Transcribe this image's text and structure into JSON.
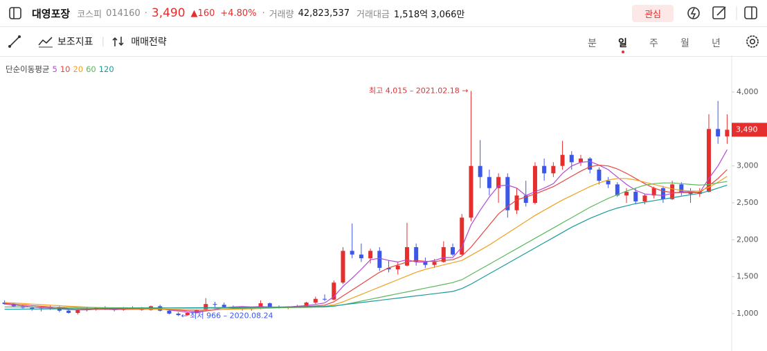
{
  "header": {
    "name": "대영포장",
    "market": "코스피",
    "code": "014160",
    "separator": "·",
    "price": "3,490",
    "change": "▲160",
    "change_rate": "+4.80%",
    "volume_label": "거래량",
    "volume": "42,823,537",
    "amount_label": "거래대금",
    "amount": "1,518억 3,066만",
    "watch_button": "관심"
  },
  "toolbar": {
    "indicator": "보조지표",
    "strategy": "매매전략",
    "tabs": [
      "분",
      "일",
      "주",
      "월",
      "년"
    ],
    "active_tab": 1
  },
  "chart_data": {
    "type": "candlestick",
    "legend_title": "단순이동평균",
    "ylim": [
      494,
      4497
    ],
    "yticks": [
      {
        "value": 1000,
        "label": "1,000"
      },
      {
        "value": 1500,
        "label": "1,500"
      },
      {
        "value": 2000,
        "label": "2,000"
      },
      {
        "value": 2500,
        "label": "2,500"
      },
      {
        "value": 3000,
        "label": "3,000"
      },
      {
        "value": 4000,
        "label": "4,000"
      }
    ],
    "up_color": "#e52e2e",
    "down_color": "#3a57e8",
    "last_price": {
      "value": 3490,
      "label": "3,490"
    },
    "annotations": [
      {
        "text": "최고 4,015 – 2021.02.18 →",
        "value": 4015,
        "index": 51,
        "color": "#e52e2e",
        "side": "left"
      },
      {
        "text": "← 최저 966 – 2020.08.24",
        "value": 966,
        "index": 19,
        "color": "#3a57e8",
        "side": "right"
      }
    ],
    "candles": [
      [
        1150,
        1180,
        1120,
        1130
      ],
      [
        1130,
        1150,
        1090,
        1100
      ],
      [
        1100,
        1120,
        1070,
        1080
      ],
      [
        1080,
        1100,
        1040,
        1060
      ],
      [
        1060,
        1090,
        1030,
        1070
      ],
      [
        1070,
        1110,
        1050,
        1090
      ],
      [
        1090,
        1100,
        1020,
        1040
      ],
      [
        1040,
        1070,
        1000,
        1010
      ],
      [
        1010,
        1060,
        990,
        1050
      ],
      [
        1050,
        1080,
        1030,
        1060
      ],
      [
        1060,
        1090,
        1040,
        1080
      ],
      [
        1080,
        1100,
        1050,
        1060
      ],
      [
        1060,
        1080,
        1030,
        1050
      ],
      [
        1050,
        1090,
        1040,
        1080
      ],
      [
        1080,
        1100,
        1060,
        1070
      ],
      [
        1070,
        1090,
        1040,
        1050
      ],
      [
        1050,
        1110,
        1040,
        1100
      ],
      [
        1100,
        1120,
        1030,
        1040
      ],
      [
        1040,
        1060,
        990,
        1000
      ],
      [
        1000,
        1020,
        966,
        980
      ],
      [
        980,
        1020,
        970,
        1010
      ],
      [
        1010,
        1060,
        1000,
        1050
      ],
      [
        1050,
        1210,
        1040,
        1130
      ],
      [
        1130,
        1160,
        1090,
        1120
      ],
      [
        1120,
        1150,
        1080,
        1090
      ],
      [
        1090,
        1110,
        1060,
        1070
      ],
      [
        1070,
        1090,
        1040,
        1060
      ],
      [
        1060,
        1080,
        1040,
        1070
      ],
      [
        1070,
        1180,
        1060,
        1140
      ],
      [
        1140,
        1150,
        1080,
        1090
      ],
      [
        1090,
        1110,
        1070,
        1080
      ],
      [
        1080,
        1100,
        1060,
        1090
      ],
      [
        1090,
        1120,
        1080,
        1100
      ],
      [
        1100,
        1160,
        1090,
        1150
      ],
      [
        1150,
        1230,
        1130,
        1200
      ],
      [
        1200,
        1260,
        1170,
        1190
      ],
      [
        1190,
        1450,
        1180,
        1420
      ],
      [
        1420,
        1900,
        1400,
        1850
      ],
      [
        1850,
        2220,
        1750,
        1800
      ],
      [
        1800,
        1950,
        1700,
        1750
      ],
      [
        1750,
        1880,
        1680,
        1850
      ],
      [
        1850,
        1900,
        1580,
        1620
      ],
      [
        1620,
        1720,
        1560,
        1600
      ],
      [
        1600,
        1700,
        1530,
        1650
      ],
      [
        1650,
        2230,
        1640,
        1900
      ],
      [
        1900,
        1950,
        1650,
        1700
      ],
      [
        1700,
        1760,
        1620,
        1660
      ],
      [
        1660,
        1740,
        1620,
        1700
      ],
      [
        1700,
        1980,
        1690,
        1900
      ],
      [
        1900,
        1950,
        1780,
        1800
      ],
      [
        1800,
        2350,
        1790,
        2300
      ],
      [
        2300,
        4015,
        2250,
        3000
      ],
      [
        3000,
        3350,
        2700,
        2850
      ],
      [
        2850,
        2950,
        2600,
        2700
      ],
      [
        2700,
        2900,
        2500,
        2850
      ],
      [
        2850,
        2900,
        2300,
        2400
      ],
      [
        2400,
        2700,
        2350,
        2600
      ],
      [
        2600,
        2800,
        2450,
        2500
      ],
      [
        2500,
        3050,
        2480,
        3000
      ],
      [
        3000,
        3100,
        2800,
        2900
      ],
      [
        2900,
        3050,
        2850,
        3000
      ],
      [
        3000,
        3340,
        2950,
        3150
      ],
      [
        3150,
        3200,
        2950,
        3050
      ],
      [
        3050,
        3150,
        3000,
        3100
      ],
      [
        3100,
        3120,
        2900,
        2950
      ],
      [
        2950,
        2980,
        2750,
        2800
      ],
      [
        2800,
        2850,
        2700,
        2750
      ],
      [
        2750,
        2780,
        2580,
        2600
      ],
      [
        2600,
        2700,
        2500,
        2650
      ],
      [
        2650,
        2700,
        2480,
        2520
      ],
      [
        2520,
        2620,
        2480,
        2600
      ],
      [
        2600,
        2720,
        2560,
        2700
      ],
      [
        2700,
        2730,
        2500,
        2550
      ],
      [
        2550,
        2800,
        2540,
        2750
      ],
      [
        2750,
        2780,
        2600,
        2650
      ],
      [
        2650,
        2700,
        2500,
        2620
      ],
      [
        2620,
        2700,
        2580,
        2650
      ],
      [
        2650,
        3700,
        2640,
        3500
      ],
      [
        3500,
        3880,
        3300,
        3400
      ],
      [
        3400,
        3700,
        3300,
        3490
      ]
    ],
    "series": [
      {
        "name": "5",
        "color": "#b548d6",
        "values": [
          1130,
          1115,
          1105,
          1090,
          1080,
          1075,
          1065,
          1055,
          1050,
          1050,
          1060,
          1060,
          1060,
          1065,
          1065,
          1060,
          1070,
          1065,
          1050,
          1035,
          1020,
          1020,
          1035,
          1060,
          1080,
          1090,
          1095,
          1090,
          1095,
          1090,
          1085,
          1090,
          1100,
          1110,
          1125,
          1145,
          1230,
          1370,
          1480,
          1600,
          1730,
          1750,
          1720,
          1700,
          1730,
          1700,
          1700,
          1720,
          1760,
          1760,
          1900,
          2200,
          2400,
          2580,
          2730,
          2740,
          2700,
          2600,
          2650,
          2700,
          2760,
          2900,
          3000,
          3050,
          3060,
          3010,
          2950,
          2850,
          2750,
          2670,
          2620,
          2610,
          2600,
          2630,
          2650,
          2650,
          2640,
          2830,
          3000,
          3220
        ]
      },
      {
        "name": "10",
        "color": "#e8453c",
        "values": [
          1140,
          1130,
          1120,
          1110,
          1100,
          1090,
          1080,
          1070,
          1065,
          1060,
          1060,
          1058,
          1055,
          1058,
          1060,
          1060,
          1062,
          1060,
          1055,
          1048,
          1040,
          1035,
          1040,
          1050,
          1058,
          1065,
          1070,
          1075,
          1080,
          1085,
          1088,
          1090,
          1092,
          1098,
          1105,
          1115,
          1160,
          1240,
          1320,
          1400,
          1480,
          1560,
          1620,
          1660,
          1700,
          1720,
          1710,
          1705,
          1720,
          1730,
          1780,
          1900,
          2050,
          2200,
          2350,
          2450,
          2540,
          2580,
          2620,
          2670,
          2720,
          2790,
          2860,
          2930,
          2990,
          3010,
          3000,
          2960,
          2900,
          2830,
          2760,
          2700,
          2660,
          2640,
          2640,
          2640,
          2640,
          2730,
          2830,
          2950
        ]
      },
      {
        "name": "20",
        "color": "#f0a020",
        "values": [
          1150,
          1145,
          1138,
          1130,
          1122,
          1115,
          1108,
          1100,
          1094,
          1088,
          1083,
          1078,
          1074,
          1070,
          1068,
          1066,
          1064,
          1062,
          1060,
          1057,
          1054,
          1052,
          1052,
          1054,
          1057,
          1060,
          1063,
          1066,
          1070,
          1074,
          1078,
          1082,
          1086,
          1090,
          1095,
          1100,
          1120,
          1160,
          1210,
          1260,
          1310,
          1360,
          1410,
          1460,
          1510,
          1560,
          1600,
          1630,
          1660,
          1690,
          1720,
          1790,
          1860,
          1930,
          2010,
          2090,
          2170,
          2250,
          2330,
          2400,
          2470,
          2540,
          2600,
          2660,
          2720,
          2770,
          2810,
          2830,
          2830,
          2810,
          2780,
          2750,
          2720,
          2690,
          2670,
          2660,
          2660,
          2710,
          2780,
          2860
        ]
      },
      {
        "name": "60",
        "color": "#5cb85c",
        "values": [
          1090,
          1090,
          1090,
          1090,
          1088,
          1087,
          1086,
          1085,
          1084,
          1083,
          1082,
          1081,
          1080,
          1080,
          1079,
          1079,
          1078,
          1078,
          1077,
          1076,
          1075,
          1075,
          1075,
          1075,
          1075,
          1076,
          1077,
          1078,
          1079,
          1080,
          1081,
          1082,
          1083,
          1085,
          1087,
          1090,
          1100,
          1120,
          1145,
          1170,
          1195,
          1220,
          1245,
          1270,
          1295,
          1320,
          1345,
          1370,
          1395,
          1420,
          1460,
          1530,
          1600,
          1670,
          1740,
          1810,
          1880,
          1950,
          2020,
          2090,
          2160,
          2230,
          2300,
          2370,
          2440,
          2500,
          2560,
          2610,
          2660,
          2700,
          2740,
          2760,
          2770,
          2770,
          2760,
          2750,
          2740,
          2750,
          2770,
          2790
        ]
      },
      {
        "name": "120",
        "color": "#1a9a9a",
        "values": [
          1060,
          1060,
          1061,
          1062,
          1063,
          1064,
          1065,
          1066,
          1067,
          1068,
          1069,
          1070,
          1071,
          1072,
          1073,
          1074,
          1075,
          1076,
          1077,
          1078,
          1079,
          1080,
          1081,
          1082,
          1083,
          1084,
          1085,
          1086,
          1087,
          1088,
          1089,
          1090,
          1091,
          1093,
          1095,
          1097,
          1105,
          1120,
          1135,
          1150,
          1165,
          1180,
          1195,
          1210,
          1225,
          1240,
          1255,
          1270,
          1285,
          1300,
          1340,
          1400,
          1470,
          1540,
          1610,
          1680,
          1750,
          1820,
          1890,
          1960,
          2030,
          2100,
          2170,
          2230,
          2290,
          2340,
          2390,
          2430,
          2460,
          2490,
          2510,
          2530,
          2550,
          2570,
          2590,
          2610,
          2630,
          2660,
          2700,
          2740
        ]
      }
    ]
  }
}
